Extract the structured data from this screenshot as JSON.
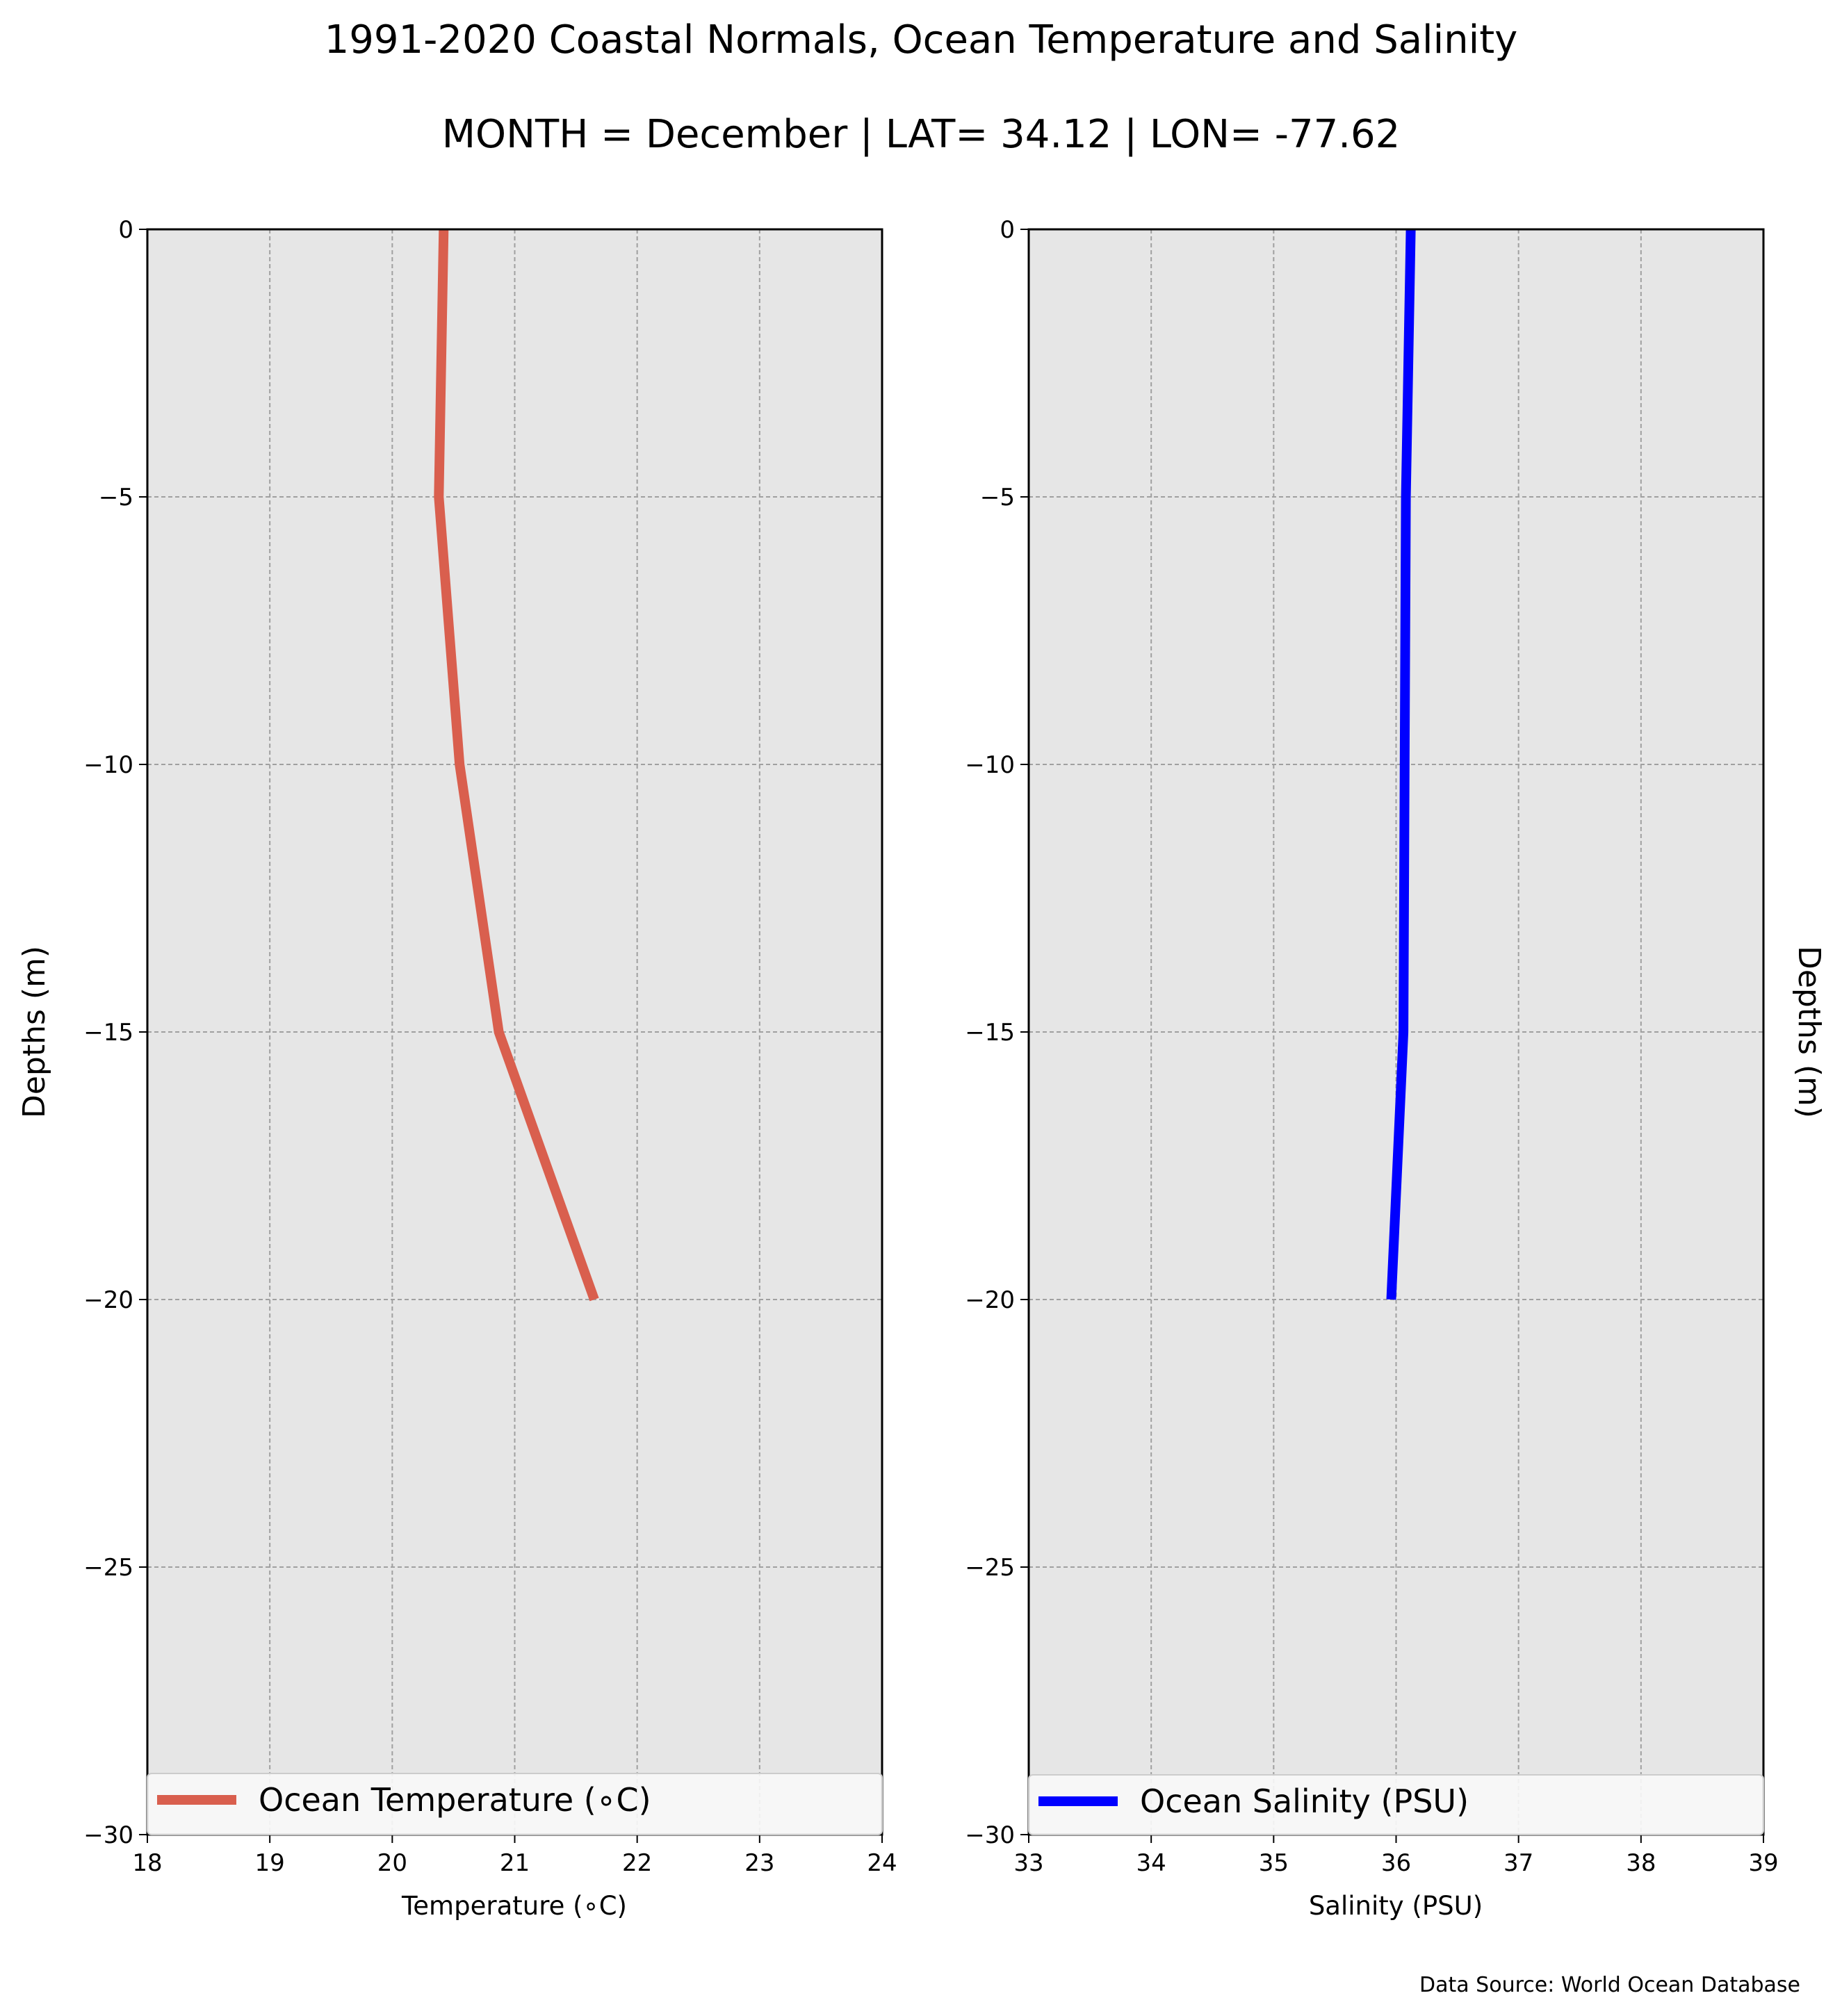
{
  "figure": {
    "title": "1991-2020 Coastal Normals, Ocean Temperature and Salinity",
    "subtitle": "MONTH = December | LAT= 34.12 | LON= -77.62",
    "source_note": "Data Source: World Ocean Database",
    "background_color": "#ffffff",
    "axes_facecolor": "#e6e6e6",
    "grid_color": "#a0a0a0"
  },
  "chart_data": [
    {
      "type": "line",
      "xlabel": "Temperature ($^\\circ$C)",
      "xlabel_text": "Temperature (∘C)",
      "ylabel": "Depths (m)",
      "ylabel_side": "left",
      "xlim": [
        18,
        24
      ],
      "ylim": [
        -30,
        0
      ],
      "xticks": [
        "18",
        "19",
        "20",
        "21",
        "22",
        "23",
        "24"
      ],
      "yticks": [
        "0",
        "−5",
        "−10",
        "−15",
        "−20",
        "−25",
        "−30"
      ],
      "grid": true,
      "legend_placement": "bottom (full width)",
      "series": [
        {
          "name": "Ocean Temperature (∘C)",
          "color": "#d95f4e",
          "x": [
            20.42,
            20.38,
            20.55,
            20.87,
            21.65
          ],
          "y": [
            0,
            -5,
            -10,
            -15,
            -20
          ]
        }
      ]
    },
    {
      "type": "line",
      "xlabel_text": "Salinity (PSU)",
      "ylabel": "Depths (m)",
      "ylabel_side": "right",
      "xlim": [
        33,
        39
      ],
      "ylim": [
        -30,
        0
      ],
      "xticks": [
        "33",
        "34",
        "35",
        "36",
        "37",
        "38",
        "39"
      ],
      "yticks": [
        "0",
        "−5",
        "−10",
        "−15",
        "−20",
        "−25",
        "−30"
      ],
      "grid": true,
      "legend_placement": "bottom (full width)",
      "series": [
        {
          "name": "Ocean Salinity (PSU)",
          "color": "#0000ff",
          "x": [
            36.12,
            36.08,
            36.07,
            36.06,
            35.96
          ],
          "y": [
            0,
            -5,
            -10,
            -15,
            -20
          ]
        }
      ]
    }
  ]
}
